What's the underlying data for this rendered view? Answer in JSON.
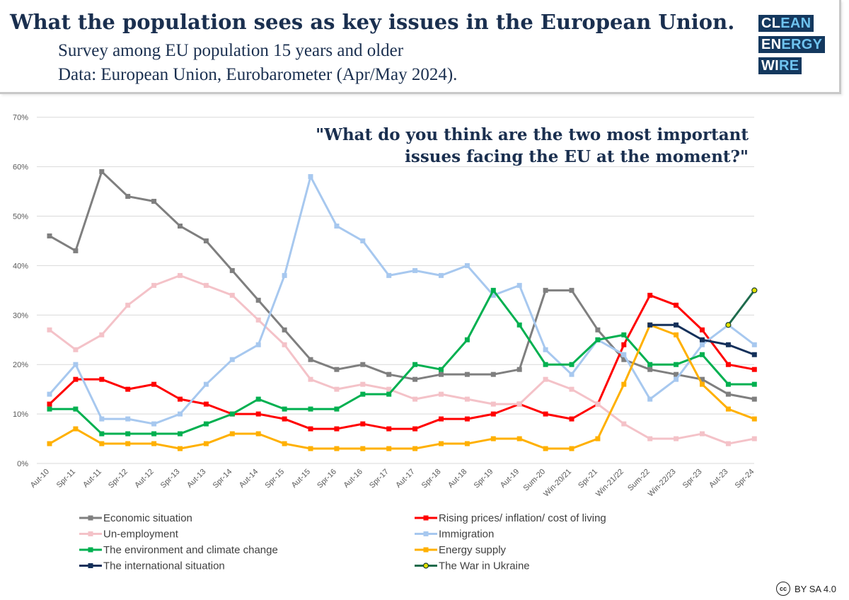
{
  "header": {
    "title": "What the population sees as key issues in the European Union.",
    "subtitle_line1": "Survey among EU population 15 years and older",
    "subtitle_line2": "Data: European Union, Eurobarometer (Apr/May 2024)."
  },
  "logo": {
    "line1_dark": "CL",
    "line1_light": "EAN",
    "line2_dark": "EN",
    "line2_light": "ERGY",
    "line3_dark": "WI",
    "line3_light": "RE"
  },
  "question": {
    "line1": "\"What do you think are the two most important",
    "line2": "issues facing the EU at the moment?\""
  },
  "license": {
    "icon_text": "cc",
    "text": "BY SA 4.0"
  },
  "colors": {
    "economic": "#7f7f7f",
    "prices": "#ff0000",
    "unemployment": "#f4c2c8",
    "immigration": "#a7c8ef",
    "environment": "#00b050",
    "energy": "#ffb000",
    "international": "#14305a",
    "ukraine": "#1e6b4c"
  },
  "chart_data": {
    "type": "line",
    "title": "\"What do you think are the two most important issues facing the EU at the moment?\"",
    "categories": [
      "Aut-10",
      "Spr-11",
      "Aut-11",
      "Spr-12",
      "Aut-12",
      "Spr-13",
      "Aut-13",
      "Spr-14",
      "Aut-14",
      "Spr-15",
      "Aut-15",
      "Spr-16",
      "Aut-16",
      "Spr-17",
      "Aut-17",
      "Spr-18",
      "Aut-18",
      "Spr-19",
      "Aut-19",
      "Sum-20",
      "Win-20/21",
      "Spr-21",
      "Win-21/22",
      "Sum-22",
      "Win-22/23",
      "Spr-23",
      "Aut-23",
      "Spr-24"
    ],
    "ylim": [
      0,
      70
    ],
    "yticks": [
      0,
      10,
      20,
      30,
      40,
      50,
      60,
      70
    ],
    "ytick_labels": [
      "0%",
      "10%",
      "20%",
      "30%",
      "40%",
      "50%",
      "60%",
      "70%"
    ],
    "series": [
      {
        "key": "economic",
        "name": "Economic situation",
        "values": [
          46,
          43,
          59,
          54,
          53,
          48,
          45,
          39,
          33,
          27,
          21,
          19,
          20,
          18,
          17,
          18,
          18,
          18,
          19,
          35,
          35,
          27,
          21,
          19,
          18,
          17,
          14,
          13
        ]
      },
      {
        "key": "prices",
        "name": "Rising prices/ inflation/ cost of living",
        "values": [
          12,
          17,
          17,
          15,
          16,
          13,
          12,
          10,
          10,
          9,
          7,
          7,
          8,
          7,
          7,
          9,
          9,
          10,
          12,
          10,
          9,
          12,
          24,
          34,
          32,
          27,
          20,
          19
        ]
      },
      {
        "key": "unemployment",
        "name": "Un-employment",
        "values": [
          27,
          23,
          26,
          32,
          36,
          38,
          36,
          34,
          29,
          24,
          17,
          15,
          16,
          15,
          13,
          14,
          13,
          12,
          12,
          17,
          15,
          12,
          8,
          5,
          5,
          6,
          4,
          5
        ]
      },
      {
        "key": "immigration",
        "name": "Immigration",
        "values": [
          14,
          20,
          9,
          9,
          8,
          10,
          16,
          21,
          24,
          38,
          58,
          48,
          45,
          38,
          39,
          38,
          40,
          34,
          36,
          23,
          18,
          25,
          22,
          13,
          17,
          24,
          28,
          24
        ]
      },
      {
        "key": "environment",
        "name": "The environment and climate change",
        "values": [
          11,
          11,
          6,
          6,
          6,
          6,
          8,
          10,
          13,
          11,
          11,
          11,
          14,
          14,
          20,
          19,
          25,
          35,
          28,
          20,
          20,
          25,
          26,
          20,
          20,
          22,
          16,
          16
        ]
      },
      {
        "key": "energy",
        "name": "Energy supply",
        "values": [
          4,
          7,
          4,
          4,
          4,
          3,
          4,
          6,
          6,
          4,
          3,
          3,
          3,
          3,
          3,
          4,
          4,
          5,
          5,
          3,
          3,
          5,
          16,
          28,
          26,
          16,
          11,
          9
        ]
      },
      {
        "key": "international",
        "name": "The international situation",
        "values": [
          null,
          null,
          null,
          null,
          null,
          null,
          null,
          null,
          null,
          null,
          null,
          null,
          null,
          null,
          null,
          null,
          null,
          null,
          null,
          null,
          null,
          null,
          null,
          28,
          28,
          25,
          24,
          22
        ]
      },
      {
        "key": "ukraine",
        "name": "The War in Ukraine",
        "values": [
          null,
          null,
          null,
          null,
          null,
          null,
          null,
          null,
          null,
          null,
          null,
          null,
          null,
          null,
          null,
          null,
          null,
          null,
          null,
          null,
          null,
          null,
          null,
          null,
          null,
          null,
          28,
          35
        ]
      }
    ],
    "legend": {
      "position": "bottom",
      "order": [
        "economic",
        "prices",
        "unemployment",
        "immigration",
        "environment",
        "energy",
        "international",
        "ukraine"
      ]
    }
  }
}
